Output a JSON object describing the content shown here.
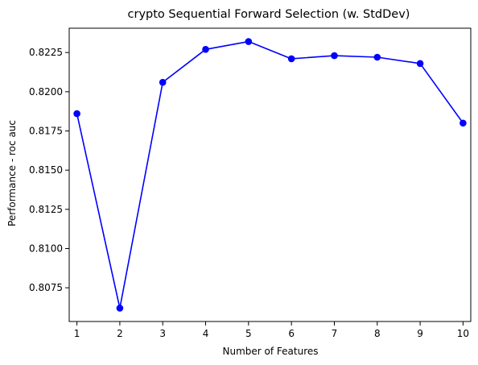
{
  "chart_data": {
    "type": "line",
    "title": "crypto Sequential Forward Selection (w. StdDev)",
    "xlabel": "Number of Features",
    "ylabel": "Performance - roc auc",
    "x": [
      1,
      2,
      3,
      4,
      5,
      6,
      7,
      8,
      9,
      10
    ],
    "series": [
      {
        "name": "Performance",
        "values": [
          0.8186,
          0.8062,
          0.8206,
          0.8227,
          0.8232,
          0.8221,
          0.8223,
          0.8222,
          0.8218,
          0.818
        ]
      }
    ],
    "xlim": [
      0.82,
      10.18
    ],
    "ylim": [
      0.80535,
      0.82405
    ],
    "xticks": [
      "1",
      "2",
      "3",
      "4",
      "5",
      "6",
      "7",
      "8",
      "9",
      "10"
    ],
    "yticks": [
      "0.8075",
      "0.8100",
      "0.8125",
      "0.8150",
      "0.8175",
      "0.8200",
      "0.8225"
    ],
    "grid": false,
    "colors": {
      "line": "#0000ff",
      "marker": "#0000ff",
      "axis": "#000000"
    }
  }
}
